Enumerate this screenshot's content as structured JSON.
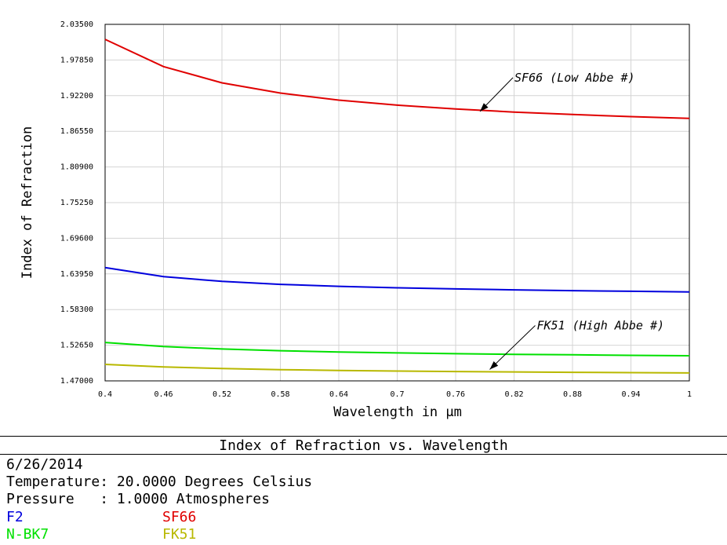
{
  "chart_data": {
    "type": "line",
    "title": "Index of Refraction vs. Wavelength",
    "xlabel": "Wavelength in µm",
    "ylabel": "Index of Refraction",
    "xlim": [
      0.4,
      1.0
    ],
    "ylim": [
      1.47,
      2.035
    ],
    "grid": true,
    "x_ticks": [
      "0.4",
      "0.46",
      "0.52",
      "0.58",
      "0.64",
      "0.7",
      "0.76",
      "0.82",
      "0.88",
      "0.94",
      "1"
    ],
    "y_ticks": [
      "2.03500",
      "1.97850",
      "1.92200",
      "1.86550",
      "1.80900",
      "1.75250",
      "1.69600",
      "1.63950",
      "1.58300",
      "1.52650",
      "1.47000"
    ],
    "x": [
      0.4,
      0.46,
      0.52,
      0.58,
      0.64,
      0.7,
      0.76,
      0.82,
      0.88,
      0.94,
      1.0
    ],
    "series": [
      {
        "name": "F2",
        "color": "#0000dd",
        "values": [
          1.6496,
          1.6352,
          1.6277,
          1.623,
          1.6198,
          1.6175,
          1.6157,
          1.6142,
          1.613,
          1.612,
          1.611
        ]
      },
      {
        "name": "SF66",
        "color": "#e00000",
        "values": [
          2.0112,
          1.968,
          1.9423,
          1.9261,
          1.9149,
          1.9069,
          1.9008,
          1.896,
          1.8921,
          1.8888,
          1.886
        ]
      },
      {
        "name": "N-BK7",
        "color": "#00e000",
        "values": [
          1.5309,
          1.5245,
          1.5205,
          1.5178,
          1.5158,
          1.5143,
          1.5131,
          1.5121,
          1.5113,
          1.5105,
          1.5098
        ]
      },
      {
        "name": "FK51",
        "color": "#b8b800",
        "values": [
          1.4961,
          1.4921,
          1.4896,
          1.4878,
          1.4866,
          1.4856,
          1.4848,
          1.4842,
          1.4836,
          1.4831,
          1.4826
        ]
      }
    ],
    "annotations": [
      {
        "text": "SF66 (Low Abbe #)",
        "x": 0.785,
        "y": 1.897
      },
      {
        "text": "FK51 (High Abbe #)",
        "x": 0.795,
        "y": 1.488
      }
    ]
  },
  "info": {
    "title": "Index of Refraction vs. Wavelength",
    "date": "6/26/2014",
    "temperature": "Temperature: 20.0000 Degrees Celsius",
    "pressure": "Pressure   : 1.0000 Atmospheres",
    "legend": [
      {
        "name": "F2",
        "color": "#0000dd"
      },
      {
        "name": "SF66",
        "color": "#e00000"
      },
      {
        "name": "N-BK7",
        "color": "#00e000"
      },
      {
        "name": "FK51",
        "color": "#b8b800"
      }
    ]
  }
}
